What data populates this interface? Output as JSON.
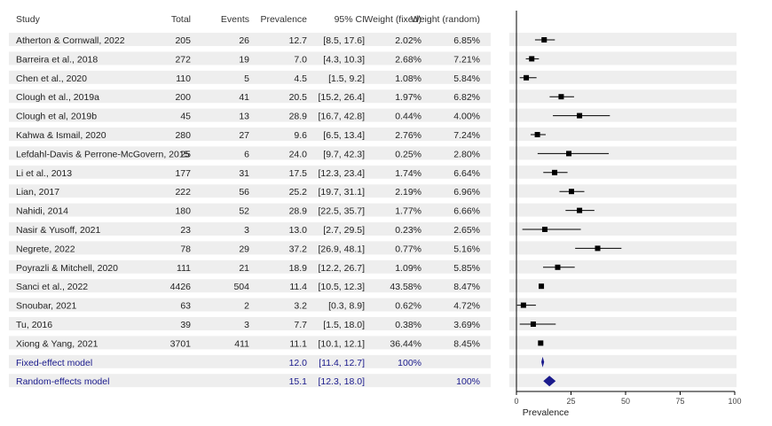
{
  "chart_data": {
    "type": "forest",
    "headers": {
      "study": "Study",
      "total": "Total",
      "events": "Events",
      "prevalence": "Prevalence",
      "ci": "95% CI",
      "weight_fixed": "Weight (fixed)",
      "weight_random": "Weight (random)"
    },
    "studies": [
      {
        "study": "Atherton & Cornwall, 2022",
        "total": "205",
        "events": "26",
        "prevalence": "12.7",
        "ci": "[8.5, 17.6]",
        "weight_fixed": "2.02%",
        "weight_random": "6.85%",
        "est": 12.7,
        "lo": 8.5,
        "hi": 17.6
      },
      {
        "study": "Barreira et al., 2018",
        "total": "272",
        "events": "19",
        "prevalence": "7.0",
        "ci": "[4.3, 10.3]",
        "weight_fixed": "2.68%",
        "weight_random": "7.21%",
        "est": 7.0,
        "lo": 4.3,
        "hi": 10.3
      },
      {
        "study": "Chen et al., 2020",
        "total": "110",
        "events": "5",
        "prevalence": "4.5",
        "ci": "[1.5, 9.2]",
        "weight_fixed": "1.08%",
        "weight_random": "5.84%",
        "est": 4.5,
        "lo": 1.5,
        "hi": 9.2
      },
      {
        "study": "Clough et al., 2019a",
        "total": "200",
        "events": "41",
        "prevalence": "20.5",
        "ci": "[15.2, 26.4]",
        "weight_fixed": "1.97%",
        "weight_random": "6.82%",
        "est": 20.5,
        "lo": 15.2,
        "hi": 26.4
      },
      {
        "study": "Clough et al, 2019b",
        "total": "45",
        "events": "13",
        "prevalence": "28.9",
        "ci": "[16.7, 42.8]",
        "weight_fixed": "0.44%",
        "weight_random": "4.00%",
        "est": 28.9,
        "lo": 16.7,
        "hi": 42.8
      },
      {
        "study": "Kahwa & Ismail, 2020",
        "total": "280",
        "events": "27",
        "prevalence": "9.6",
        "ci": "[6.5, 13.4]",
        "weight_fixed": "2.76%",
        "weight_random": "7.24%",
        "est": 9.6,
        "lo": 6.5,
        "hi": 13.4
      },
      {
        "study": "Lefdahl-Davis & Perrone-McGovern, 2015",
        "total": "25",
        "events": "6",
        "prevalence": "24.0",
        "ci": "[9.7, 42.3]",
        "weight_fixed": "0.25%",
        "weight_random": "2.80%",
        "est": 24.0,
        "lo": 9.7,
        "hi": 42.3
      },
      {
        "study": "Li et al., 2013",
        "total": "177",
        "events": "31",
        "prevalence": "17.5",
        "ci": "[12.3, 23.4]",
        "weight_fixed": "1.74%",
        "weight_random": "6.64%",
        "est": 17.5,
        "lo": 12.3,
        "hi": 23.4
      },
      {
        "study": "Lian, 2017",
        "total": "222",
        "events": "56",
        "prevalence": "25.2",
        "ci": "[19.7, 31.1]",
        "weight_fixed": "2.19%",
        "weight_random": "6.96%",
        "est": 25.2,
        "lo": 19.7,
        "hi": 31.1
      },
      {
        "study": "Nahidi, 2014",
        "total": "180",
        "events": "52",
        "prevalence": "28.9",
        "ci": "[22.5, 35.7]",
        "weight_fixed": "1.77%",
        "weight_random": "6.66%",
        "est": 28.9,
        "lo": 22.5,
        "hi": 35.7
      },
      {
        "study": "Nasir & Yusoff, 2021",
        "total": "23",
        "events": "3",
        "prevalence": "13.0",
        "ci": "[2.7, 29.5]",
        "weight_fixed": "0.23%",
        "weight_random": "2.65%",
        "est": 13.0,
        "lo": 2.7,
        "hi": 29.5
      },
      {
        "study": "Negrete, 2022",
        "total": "78",
        "events": "29",
        "prevalence": "37.2",
        "ci": "[26.9, 48.1]",
        "weight_fixed": "0.77%",
        "weight_random": "5.16%",
        "est": 37.2,
        "lo": 26.9,
        "hi": 48.1
      },
      {
        "study": "Poyrazli & Mitchell, 2020",
        "total": "111",
        "events": "21",
        "prevalence": "18.9",
        "ci": "[12.2, 26.7]",
        "weight_fixed": "1.09%",
        "weight_random": "5.85%",
        "est": 18.9,
        "lo": 12.2,
        "hi": 26.7
      },
      {
        "study": "Sanci et al., 2022",
        "total": "4426",
        "events": "504",
        "prevalence": "11.4",
        "ci": "[10.5, 12.3]",
        "weight_fixed": "43.58%",
        "weight_random": "8.47%",
        "est": 11.4,
        "lo": 10.5,
        "hi": 12.3
      },
      {
        "study": "Snoubar, 2021",
        "total": "63",
        "events": "2",
        "prevalence": "3.2",
        "ci": "[0.3, 8.9]",
        "weight_fixed": "0.62%",
        "weight_random": "4.72%",
        "est": 3.2,
        "lo": 0.3,
        "hi": 8.9
      },
      {
        "study": "Tu, 2016",
        "total": "39",
        "events": "3",
        "prevalence": "7.7",
        "ci": "[1.5, 18.0]",
        "weight_fixed": "0.38%",
        "weight_random": "3.69%",
        "est": 7.7,
        "lo": 1.5,
        "hi": 18.0
      },
      {
        "study": "Xiong & Yang, 2021",
        "total": "3701",
        "events": "411",
        "prevalence": "11.1",
        "ci": "[10.1, 12.1]",
        "weight_fixed": "36.44%",
        "weight_random": "8.45%",
        "est": 11.1,
        "lo": 10.1,
        "hi": 12.1
      }
    ],
    "summaries": [
      {
        "study": "Fixed-effect model",
        "prevalence": "12.0",
        "ci": "[11.4, 12.7]",
        "weight_fixed": "100%",
        "weight_random": "",
        "est": 12.0,
        "lo": 11.4,
        "hi": 12.7
      },
      {
        "study": "Random-effects model",
        "prevalence": "15.1",
        "ci": "[12.3, 18.0]",
        "weight_fixed": "",
        "weight_random": "100%",
        "est": 15.1,
        "lo": 12.3,
        "hi": 18.0
      }
    ],
    "xlim": [
      0,
      100
    ],
    "xticks": [
      "0",
      "25",
      "50",
      "75",
      "100"
    ],
    "xlabel": "Prevalence",
    "colors": {
      "stripe": "#eeeeee",
      "summary": "#1a1a8c",
      "marker": "#000000"
    }
  }
}
